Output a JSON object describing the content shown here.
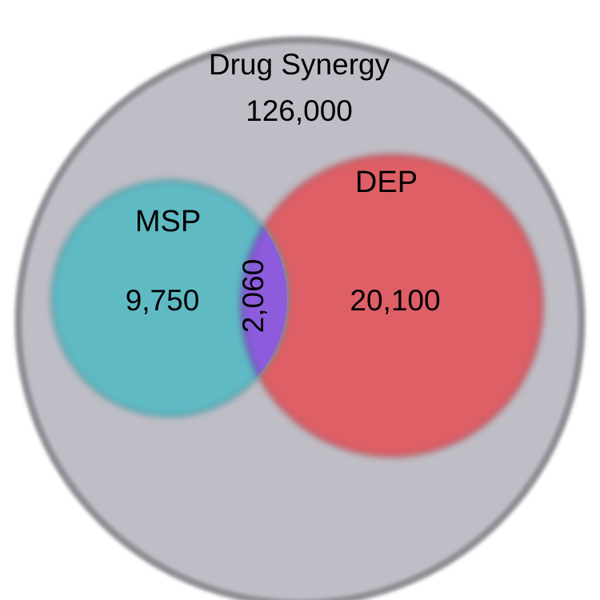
{
  "diagram": {
    "type": "venn",
    "universe": {
      "label": "Drug Synergy",
      "count": "126,000",
      "fill": "#bfbec6",
      "stroke": "#8e8e94"
    },
    "sets": [
      {
        "id": "msp",
        "label": "MSP",
        "count": "9,750",
        "fill": "#5fbac4"
      },
      {
        "id": "dep",
        "label": "DEP",
        "count": "20,100",
        "fill": "#de5f66"
      }
    ],
    "intersection": {
      "count": "2,060",
      "fill": "#8c5cdc"
    }
  }
}
